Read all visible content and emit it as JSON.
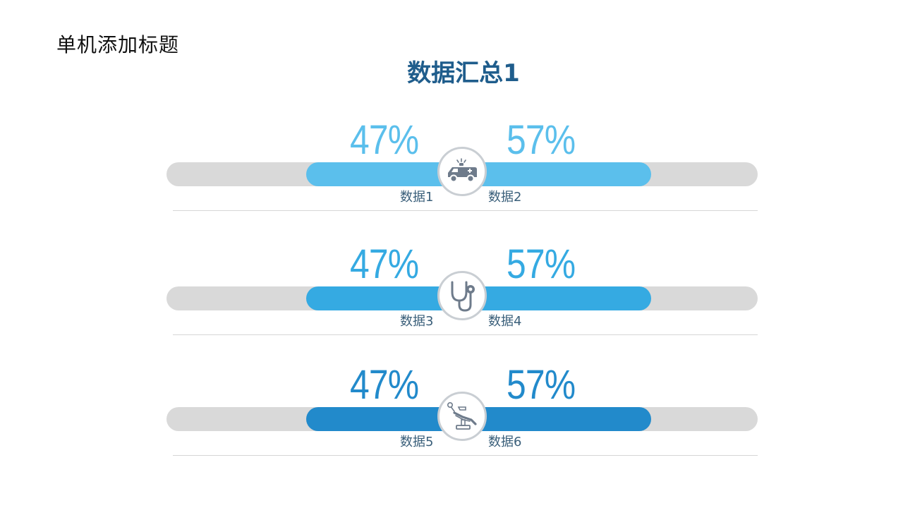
{
  "page": {
    "title": "单机添加标题"
  },
  "chart_data": {
    "type": "bar",
    "title": "数据汇总1",
    "scale": [
      0,
      100
    ],
    "rows": [
      {
        "left_label": "数据1",
        "left_value": 47,
        "left_text": "47%",
        "right_label": "数据2",
        "right_value": 57,
        "right_text": "57%",
        "icon": "ambulance-icon",
        "color": "#5bbfec"
      },
      {
        "left_label": "数据3",
        "left_value": 47,
        "left_text": "47%",
        "right_label": "数据4",
        "right_value": 57,
        "right_text": "57%",
        "icon": "stethoscope-icon",
        "color": "#35aae2"
      },
      {
        "left_label": "数据5",
        "left_value": 47,
        "left_text": "47%",
        "right_label": "数据6",
        "right_value": 57,
        "right_text": "57%",
        "icon": "dental-chair-icon",
        "color": "#228acb"
      }
    ]
  },
  "colors": {
    "title": "#1f5d8c",
    "track": "#d9d9d9",
    "icon": "#6e7b8b"
  }
}
